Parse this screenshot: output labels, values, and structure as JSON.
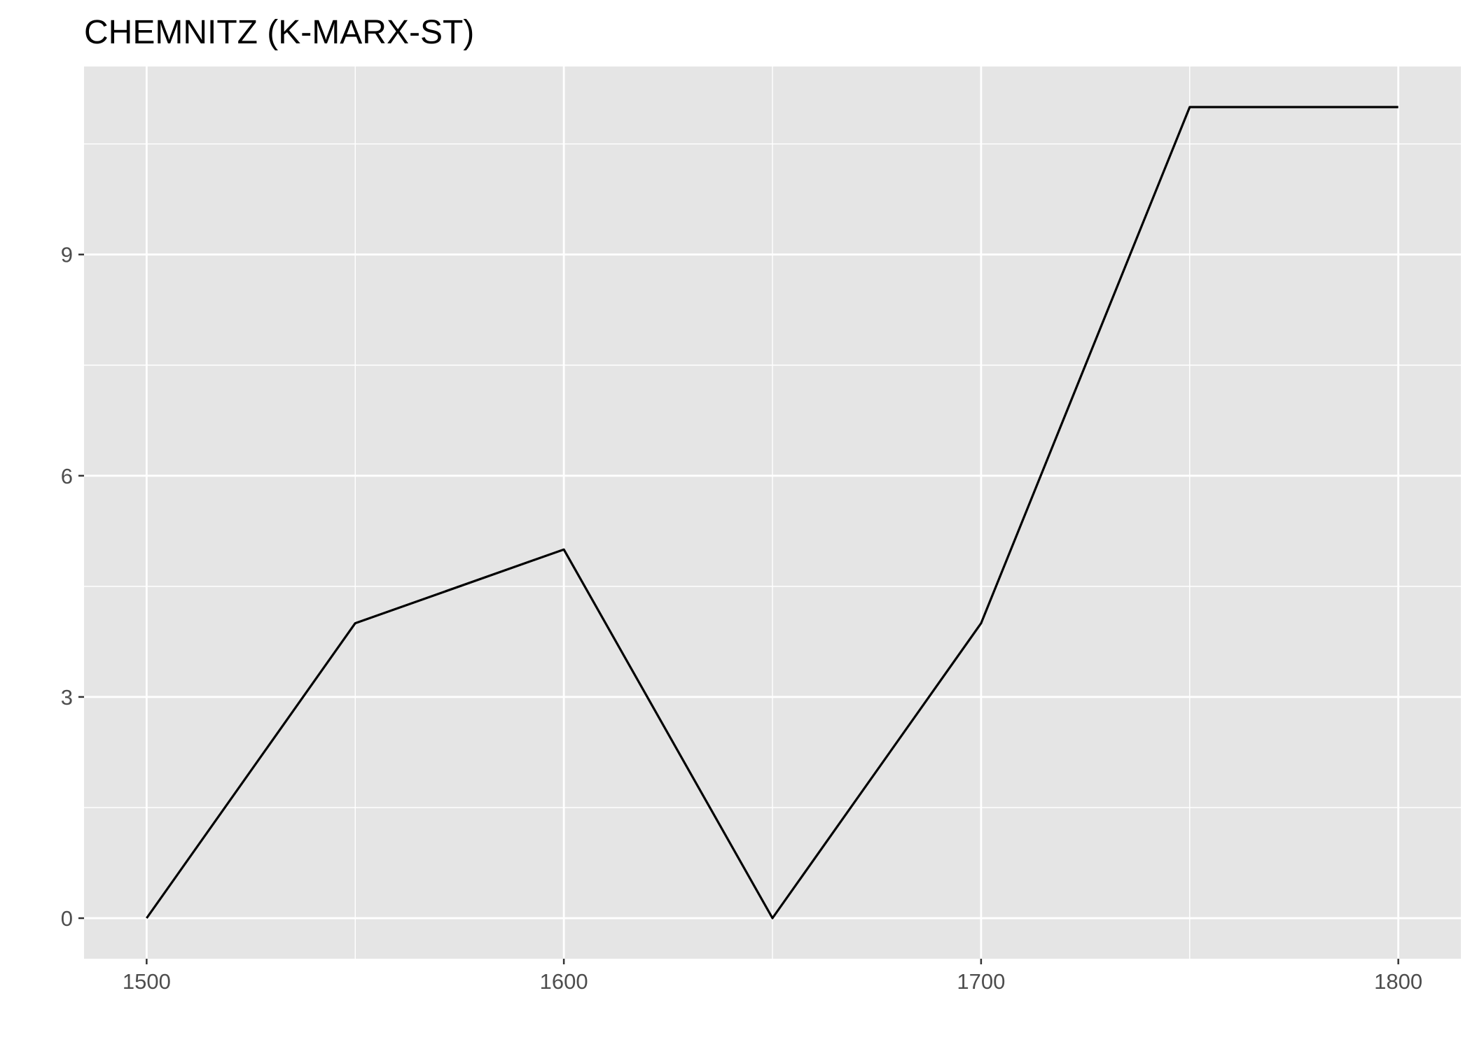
{
  "chart_data": {
    "type": "line",
    "title": "CHEMNITZ (K-MARX-ST)",
    "xlabel": "",
    "ylabel": "",
    "x": [
      1500,
      1550,
      1600,
      1650,
      1700,
      1750,
      1800
    ],
    "series": [
      {
        "values": [
          0,
          4,
          5,
          0,
          4,
          11,
          11
        ]
      }
    ],
    "xlim": [
      1485,
      1815
    ],
    "ylim": [
      -0.55,
      11.55
    ],
    "xticks": [
      1500,
      1600,
      1700,
      1800
    ],
    "xtick_labels": [
      "1500",
      "1600",
      "1700",
      "1800"
    ],
    "yticks": [
      0,
      3,
      6,
      9
    ],
    "ytick_labels": [
      "0",
      "3",
      "6",
      "9"
    ],
    "x_minor_grid": [
      1550,
      1650,
      1750
    ],
    "y_minor_grid": [
      1.5,
      4.5,
      7.5,
      10.5
    ],
    "grid": true,
    "legend": "none",
    "colors": {
      "panel": "#e5e5e5",
      "grid": "#ffffff",
      "line": "#000000",
      "tick_text": "#4d4d4d",
      "tick_mark": "#333333"
    }
  }
}
